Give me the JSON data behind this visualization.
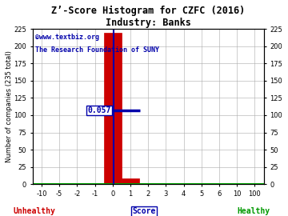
{
  "title": "Z’-Score Histogram for CZFC (2016)",
  "subtitle": "Industry: Banks",
  "watermark1": "©www.textbiz.org",
  "watermark2": "The Research Foundation of SUNY",
  "xlabel_left": "Unhealthy",
  "xlabel_center": "Score",
  "xlabel_right": "Healthy",
  "ylabel_left": "Number of companies (235 total)",
  "ylim": [
    0,
    225
  ],
  "yticks": [
    0,
    25,
    50,
    75,
    100,
    125,
    150,
    175,
    200,
    225
  ],
  "xtick_labels": [
    "-10",
    "-5",
    "-2",
    "-1",
    "0",
    "1",
    "2",
    "3",
    "4",
    "5",
    "6",
    "10",
    "100"
  ],
  "xtick_positions": [
    0,
    1,
    2,
    3,
    4,
    5,
    6,
    7,
    8,
    9,
    10,
    11,
    12
  ],
  "num_bins": 13,
  "bar_main_bin": 4,
  "bar_main_height": 220,
  "bar_second_bin": 5,
  "bar_second_height": 8,
  "bar_color": "#cc0000",
  "score_bin": 4.057,
  "score_label": "0.057",
  "crosshair_y": 107,
  "crosshair_color": "#0000aa",
  "annotation_color": "#0000aa",
  "grid_color": "#aaaaaa",
  "bg_color": "#ffffff",
  "watermark_color": "#0000aa",
  "unhealthy_color": "#cc0000",
  "healthy_color": "#009900",
  "score_color": "#0000aa",
  "title_color": "#000000",
  "green_line_color": "#00aa00"
}
